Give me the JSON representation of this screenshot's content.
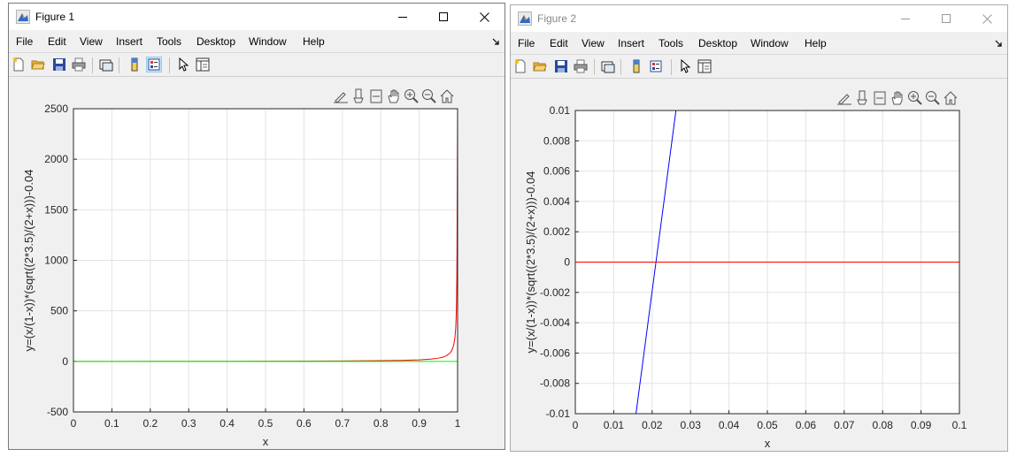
{
  "windows": [
    {
      "title": "Figure 1",
      "menu": [
        "File",
        "Edit",
        "View",
        "Insert",
        "Tools",
        "Desktop",
        "Window",
        "Help"
      ],
      "xlabel": "x",
      "ylabel": "y=(x/(1-x))*(sqrt((2*3.5)/(2+x)))-0.04",
      "xticks": [
        "0",
        "0.1",
        "0.2",
        "0.3",
        "0.4",
        "0.5",
        "0.6",
        "0.7",
        "0.8",
        "0.9",
        "1"
      ],
      "yticks": [
        "-500",
        "0",
        "500",
        "1000",
        "1500",
        "2000",
        "2500"
      ]
    },
    {
      "title": "Figure 2",
      "menu": [
        "File",
        "Edit",
        "View",
        "Insert",
        "Tools",
        "Desktop",
        "Window",
        "Help"
      ],
      "xlabel": "x",
      "ylabel": "y=(x/(1-x))*(sqrt((2*3.5)/(2+x)))-0.04",
      "xticks": [
        "0",
        "0.01",
        "0.02",
        "0.03",
        "0.04",
        "0.05",
        "0.06",
        "0.07",
        "0.08",
        "0.09",
        "0.1"
      ],
      "yticks": [
        "-0.01",
        "-0.008",
        "-0.006",
        "-0.004",
        "-0.002",
        "0",
        "0.002",
        "0.004",
        "0.006",
        "0.008",
        "0.01"
      ]
    }
  ],
  "chart_data": [
    {
      "type": "line",
      "xlim": [
        0,
        1
      ],
      "ylim": [
        -500,
        2500
      ],
      "grid": true,
      "function": "y=(x/(1-x))*(sqrt((2*3.5)/(2+x)))-0.04",
      "series": [
        {
          "color": "#ff0000",
          "x": [
            0,
            0.2,
            0.4,
            0.6,
            0.7,
            0.8,
            0.85,
            0.9,
            0.93,
            0.95,
            0.96,
            0.97,
            0.98,
            0.985,
            0.99,
            0.993,
            0.995,
            0.996,
            0.997,
            0.998,
            0.9985,
            0.99875
          ],
          "y": [
            -0.04,
            0.42,
            1.17,
            2.55,
            3.93,
            6.89,
            9.72,
            15.2,
            22.5,
            31.9,
            40.1,
            53.7,
            80.9,
            108.1,
            162.5,
            232.4,
            326.0,
            407.5,
            543.6,
            815.8,
            1088.1,
            1306.0
          ]
        },
        {
          "color": "#00ff00",
          "x": [
            0,
            1
          ],
          "y": [
            0,
            0
          ]
        }
      ]
    },
    {
      "type": "line",
      "xlim": [
        0,
        0.1
      ],
      "ylim": [
        -0.01,
        0.01
      ],
      "grid": true,
      "function": "y=(x/(1-x))*(sqrt((2*3.5)/(2+x)))-0.04",
      "series": [
        {
          "color": "#0000ff",
          "x": [
            0.0158,
            0.0262
          ],
          "y": [
            -0.01,
            0.01
          ]
        },
        {
          "color": "#ff0000",
          "x": [
            0,
            0.1
          ],
          "y": [
            0,
            0
          ]
        }
      ]
    }
  ]
}
